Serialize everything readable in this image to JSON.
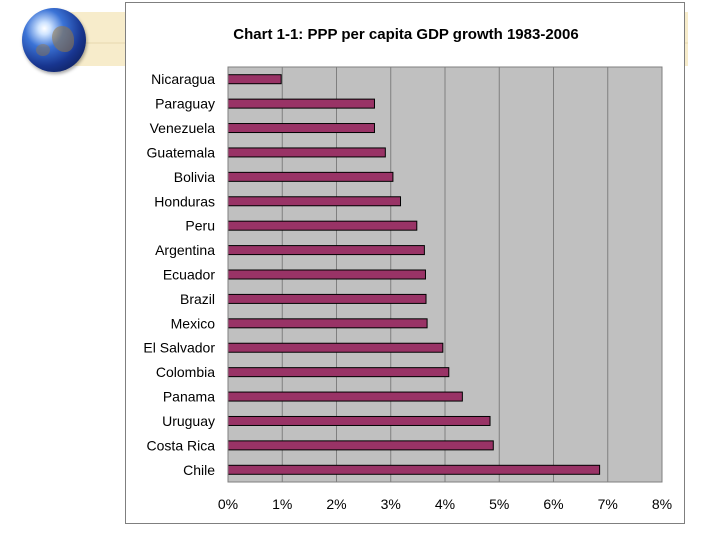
{
  "chart_data": {
    "type": "bar",
    "orientation": "horizontal",
    "title": "Chart 1-1: PPP per capita GDP growth 1983-2006",
    "xlabel": "",
    "ylabel": "",
    "categories": [
      "Nicaragua",
      "Paraguay",
      "Venezuela",
      "Guatemala",
      "Bolivia",
      "Honduras",
      "Peru",
      "Argentina",
      "Ecuador",
      "Brazil",
      "Mexico",
      "El Salvador",
      "Colombia",
      "Panama",
      "Uruguay",
      "Costa Rica",
      "Chile"
    ],
    "values": [
      0.98,
      2.7,
      2.7,
      2.9,
      3.04,
      3.18,
      3.48,
      3.62,
      3.64,
      3.65,
      3.67,
      3.96,
      4.07,
      4.32,
      4.83,
      4.89,
      6.85
    ],
    "xlim": [
      0,
      8
    ],
    "ticks": [
      "0%",
      "1%",
      "2%",
      "3%",
      "4%",
      "5%",
      "6%",
      "7%",
      "8%"
    ],
    "grid": true,
    "legend": "none",
    "colors": {
      "bar": "#993366",
      "bar_edge": "#000000",
      "plot_background": "#c0c0c0",
      "grid": "#7f7f7f"
    }
  }
}
